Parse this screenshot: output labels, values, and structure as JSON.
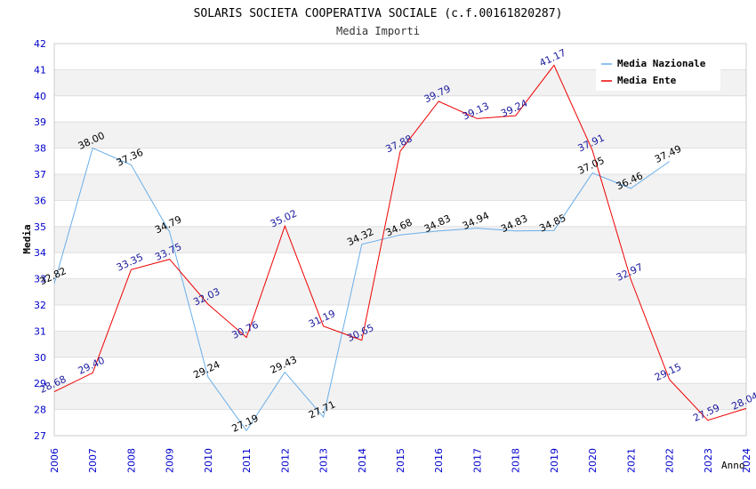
{
  "chart_data": {
    "type": "line",
    "title": "SOLARIS SOCIETA COOPERATIVA SOCIALE (c.f.00161820287)",
    "subtitle": "Media Importi",
    "xlabel": "Anno",
    "ylabel": "Media",
    "ylim": [
      27,
      42
    ],
    "yticks": [
      "27",
      "28",
      "29",
      "30",
      "31",
      "32",
      "33",
      "34",
      "35",
      "36",
      "37",
      "38",
      "39",
      "40",
      "41",
      "42"
    ],
    "categories": [
      "2006",
      "2007",
      "2008",
      "2009",
      "2010",
      "2011",
      "2012",
      "2013",
      "2014",
      "2015",
      "2016",
      "2017",
      "2018",
      "2019",
      "2020",
      "2021",
      "2022",
      "2023",
      "2024"
    ],
    "legend_position": "top-right",
    "series": [
      {
        "name": "Media Nazionale",
        "color": "#6aaee8",
        "label_color": "#000000",
        "values": [
          32.82,
          38.0,
          37.36,
          34.79,
          29.24,
          27.19,
          29.43,
          27.71,
          34.32,
          34.68,
          34.83,
          34.94,
          34.83,
          34.85,
          37.05,
          36.46,
          37.49,
          null,
          null
        ],
        "labels": [
          "32.82",
          "38.00",
          "37.36",
          "34.79",
          "29.24",
          "27.19",
          "29.43",
          "27.71",
          "34.32",
          "34.68",
          "34.83",
          "34.94",
          "34.83",
          "34.85",
          "37.05",
          "36.46",
          "37.49",
          null,
          null
        ]
      },
      {
        "name": "Media Ente",
        "color": "#ee0000",
        "label_color": "#1a1a9e",
        "values": [
          28.68,
          29.4,
          33.35,
          33.75,
          32.03,
          30.76,
          35.02,
          31.19,
          30.65,
          37.88,
          39.79,
          39.13,
          39.24,
          41.17,
          37.91,
          32.97,
          29.15,
          27.59,
          28.04
        ],
        "labels": [
          "28.68",
          "29.40",
          "33.35",
          "33.75",
          "32.03",
          "30.76",
          "35.02",
          "31.19",
          "30.65",
          "37.88",
          "39.79",
          "39.13",
          "39.24",
          "41.17",
          "37.91",
          "32.97",
          "29.15",
          "27.59",
          "28.04"
        ]
      }
    ],
    "colors": {
      "band": "#f2f2f2",
      "grid": "#d9d9d9",
      "tick_text": "#0000cc",
      "title_text": "#000000",
      "subtitle_text": "#333333"
    }
  }
}
